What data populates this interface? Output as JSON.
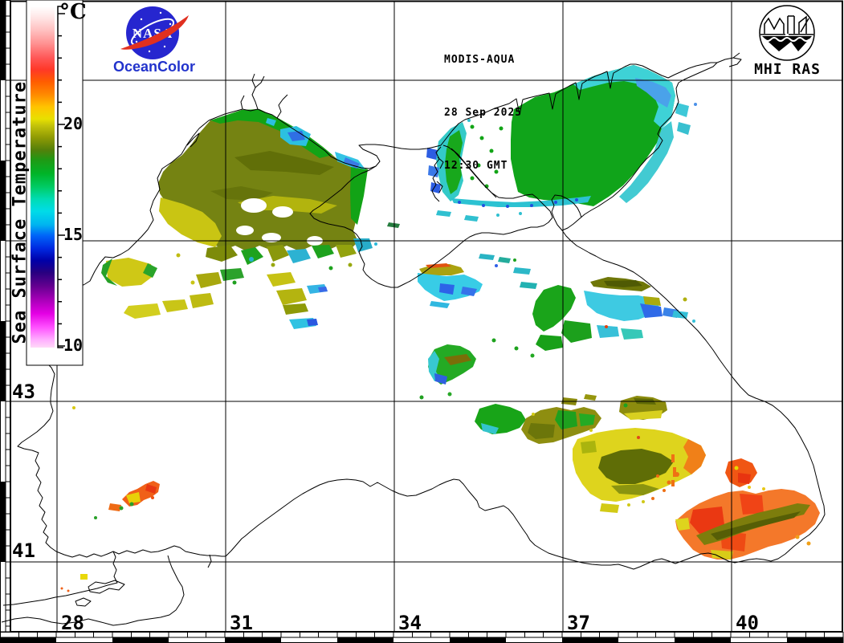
{
  "header": {
    "satellite": "MODIS-AQUA",
    "date": "28 Sep 2025",
    "time": "12:30 GMT"
  },
  "logos": {
    "nasa_label": "NASA",
    "nasa_wordmark": "OceanColor",
    "mhi_label": "MHI RAS"
  },
  "colorbar": {
    "title": "Sea Surface Temperature",
    "unit": "°C",
    "tick_labels": [
      "20",
      "15",
      "10"
    ]
  },
  "axis": {
    "lat": [
      "43",
      "41"
    ],
    "lon": [
      "28",
      "31",
      "34",
      "37",
      "40"
    ]
  },
  "map_data": {
    "type": "satellite-sst-map",
    "region": "Black Sea and Sea of Azov",
    "satellite": "MODIS-AQUA",
    "date": "28 Sep 2025",
    "time": "12:30 GMT",
    "colorbar": {
      "unit": "°C",
      "labeled_ticks": [
        20,
        15,
        10
      ],
      "minor_tick_step_c": 1,
      "approx_range_c": [
        10,
        25
      ],
      "scale_colors_top_to_bottom": [
        "#ffffff",
        "#ff9090",
        "#ff3828",
        "#ff8c00",
        "#ffc400",
        "#c2c20a",
        "#8e9a04",
        "#1f9a14",
        "#00cc66",
        "#00dce8",
        "#00b4f0",
        "#0064f8",
        "#0000a8",
        "#640090",
        "#e400e4",
        "#ff50ff",
        "#ffd8f8"
      ]
    },
    "graticule": {
      "lon_gridlines_deg": [
        28,
        31,
        34,
        37,
        40
      ],
      "lat_gridlines_deg": [
        47,
        45,
        43,
        41
      ],
      "labeled_lons": [
        "28",
        "31",
        "34",
        "37",
        "40"
      ],
      "labeled_lats": [
        "43",
        "41"
      ]
    },
    "observed_regions": [
      {
        "name": "northwestern shelf",
        "approx_sst_c": "19-21",
        "dominant_colors": [
          "olive",
          "green",
          "yellow",
          "cyan estuaries"
        ]
      },
      {
        "name": "Sea of Azov",
        "approx_sst_c": "15-18",
        "dominant_colors": [
          "green",
          "cyan",
          "blue"
        ]
      },
      {
        "name": "south of Crimea",
        "approx_sst_c": "14-20",
        "dominant_colors": [
          "olive",
          "cyan",
          "blue"
        ]
      },
      {
        "name": "central scattered patches",
        "approx_sst_c": "15-20",
        "dominant_colors": [
          "green",
          "cyan"
        ]
      },
      {
        "name": "southeastern Black Sea",
        "approx_sst_c": "20-24",
        "dominant_colors": [
          "yellow",
          "olive",
          "orange",
          "red"
        ]
      },
      {
        "name": "near Bosphorus exit",
        "approx_sst_c": "21-23",
        "dominant_colors": [
          "orange",
          "yellow"
        ]
      }
    ],
    "no_data_color": "#ffffff"
  }
}
